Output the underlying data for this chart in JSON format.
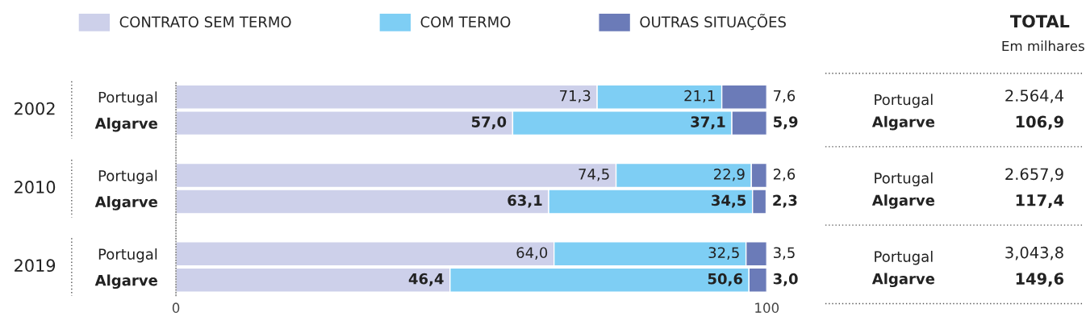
{
  "chart_data": {
    "type": "bar",
    "orientation": "horizontal",
    "stacked": true,
    "categories": [
      "Portugal",
      "Algarve",
      "Portugal",
      "Algarve",
      "Portugal",
      "Algarve"
    ],
    "series": [
      {
        "name": "CONTRATO SEM TERMO",
        "color": "#cdd0ea",
        "values": [
          71.3,
          57.0,
          74.5,
          63.1,
          64.0,
          46.4
        ],
        "value_labels": [
          "71,3",
          "57,0",
          "74,5",
          "63,1",
          "64,0",
          "46,4"
        ]
      },
      {
        "name": "COM TERMO",
        "color": "#7ecef4",
        "values": [
          21.1,
          37.1,
          22.9,
          34.5,
          32.5,
          50.6
        ],
        "value_labels": [
          "21,1",
          "37,1",
          "22,9",
          "34,5",
          "32,5",
          "50,6"
        ]
      },
      {
        "name": "OUTRAS SITUAÇÕES",
        "color": "#6b7bb8",
        "values": [
          7.6,
          5.9,
          2.6,
          2.3,
          3.5,
          3.0
        ],
        "value_labels": [
          "7,6",
          "5,9",
          "2,6",
          "2,3",
          "3,5",
          "3,0"
        ]
      }
    ],
    "xlim": [
      0,
      100
    ],
    "xticks": [
      0,
      100
    ],
    "grid": false,
    "legend": "top left",
    "annotations": [
      "2002",
      "2010",
      "2019",
      "TOTAL",
      "Em milhares",
      "2.564,4",
      "106,9",
      "2.657,9",
      "117,4",
      "3,043,8",
      "149,6"
    ]
  }
}
